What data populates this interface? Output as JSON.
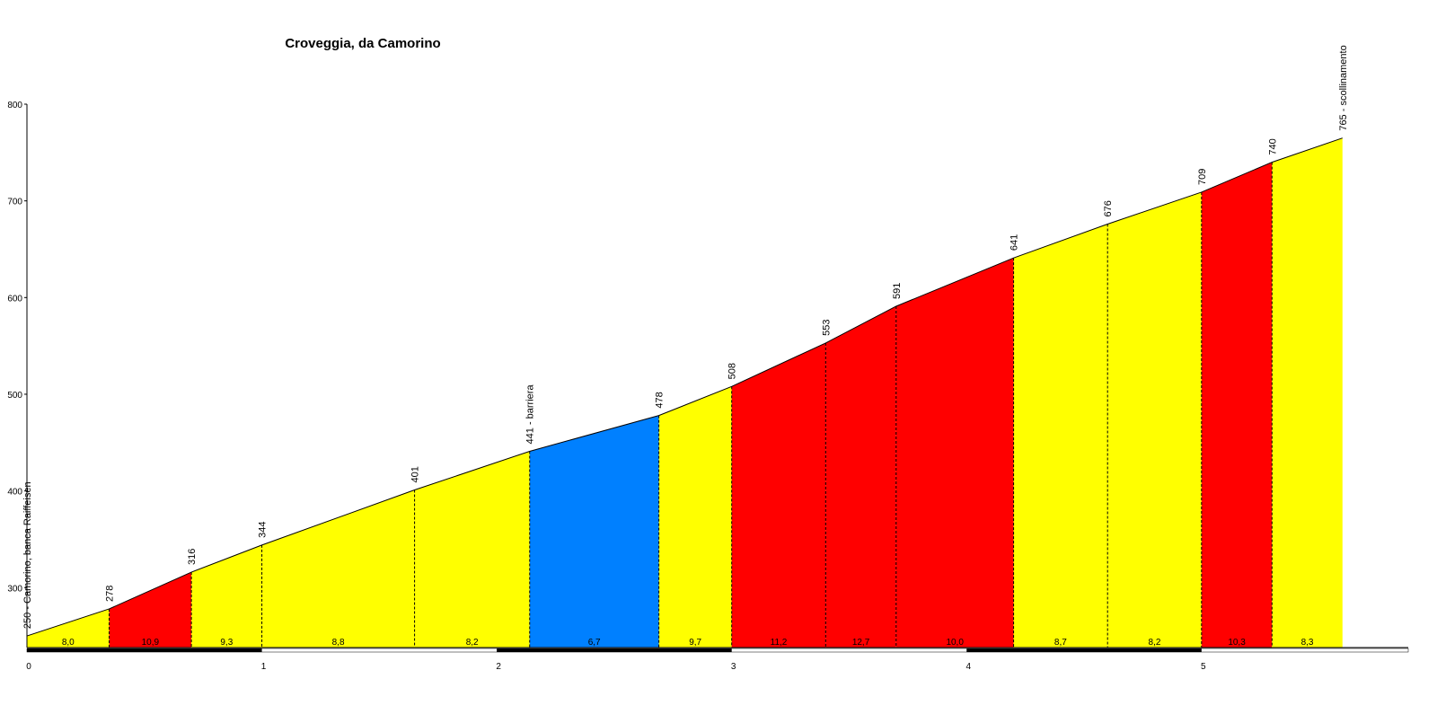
{
  "chart_data": {
    "type": "area",
    "title": "Croveggia, da Camorino",
    "x": [
      0,
      0.35,
      0.7,
      1.0,
      1.65,
      2.14,
      2.69,
      3.0,
      3.4,
      3.7,
      4.2,
      4.6,
      5.0,
      5.3,
      5.6
    ],
    "values": [
      250,
      278,
      316,
      344,
      401,
      441,
      478,
      508,
      553,
      591,
      641,
      676,
      709,
      740,
      765
    ],
    "value_labels": [
      "250 - Camorino, banca Raiffeisen",
      "278",
      "316",
      "344",
      "401",
      "441 - barriera",
      "478",
      "508",
      "553",
      "591",
      "641",
      "676",
      "709",
      "740",
      "765 - scollinamento"
    ],
    "segment_labels": [
      "8,0",
      "10,9",
      "9,3",
      "8,8",
      "8,2",
      "6,7",
      "9,7",
      "11,2",
      "12,7",
      "10,0",
      "8,7",
      "8,2",
      "10,3",
      "8,3"
    ],
    "segment_colors": [
      "#ffff00",
      "#ff0000",
      "#ffff00",
      "#ffff00",
      "#ffff00",
      "#0080ff",
      "#ffff00",
      "#ff0000",
      "#ff0000",
      "#ff0000",
      "#ffff00",
      "#ffff00",
      "#ff0000",
      "#ffff00"
    ],
    "xlim": [
      0,
      5.88
    ],
    "xticks": [
      0,
      1,
      2,
      3,
      4,
      5
    ],
    "ylim": [
      238,
      800
    ],
    "yticks": [
      300,
      400,
      500,
      600,
      700,
      800
    ]
  }
}
